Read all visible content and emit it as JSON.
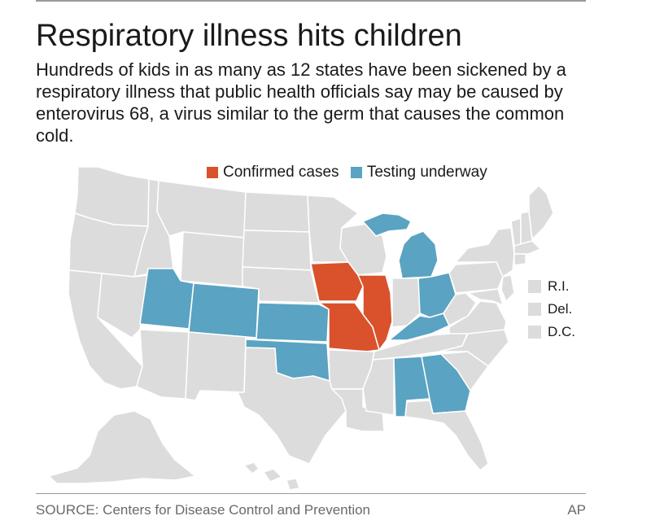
{
  "headline": "Respiratory illness hits children",
  "subhead": "Hundreds of kids in as many as 12 states have been sickened by a respiratory illness that public health officials say may be caused by enterovirus 68, a virus similar to the germ that causes the common cold.",
  "legend": [
    {
      "label": "Confirmed cases",
      "color": "#d9522b"
    },
    {
      "label": "Testing underway",
      "color": "#5aa3c2"
    }
  ],
  "colors": {
    "default_state": "#dcdcdc",
    "border": "#ffffff",
    "confirmed": "#d9522b",
    "testing": "#5aa3c2"
  },
  "map": {
    "confirmed_states": [
      "Iowa",
      "Missouri",
      "Illinois"
    ],
    "testing_states": [
      "Utah",
      "Colorado",
      "Kansas",
      "Oklahoma",
      "Michigan",
      "Ohio",
      "Kentucky",
      "Alabama",
      "Georgia"
    ]
  },
  "small_states": [
    "R.I.",
    "Del.",
    "D.C."
  ],
  "source": "SOURCE: Centers for Disease Control and Prevention",
  "credit": "AP"
}
